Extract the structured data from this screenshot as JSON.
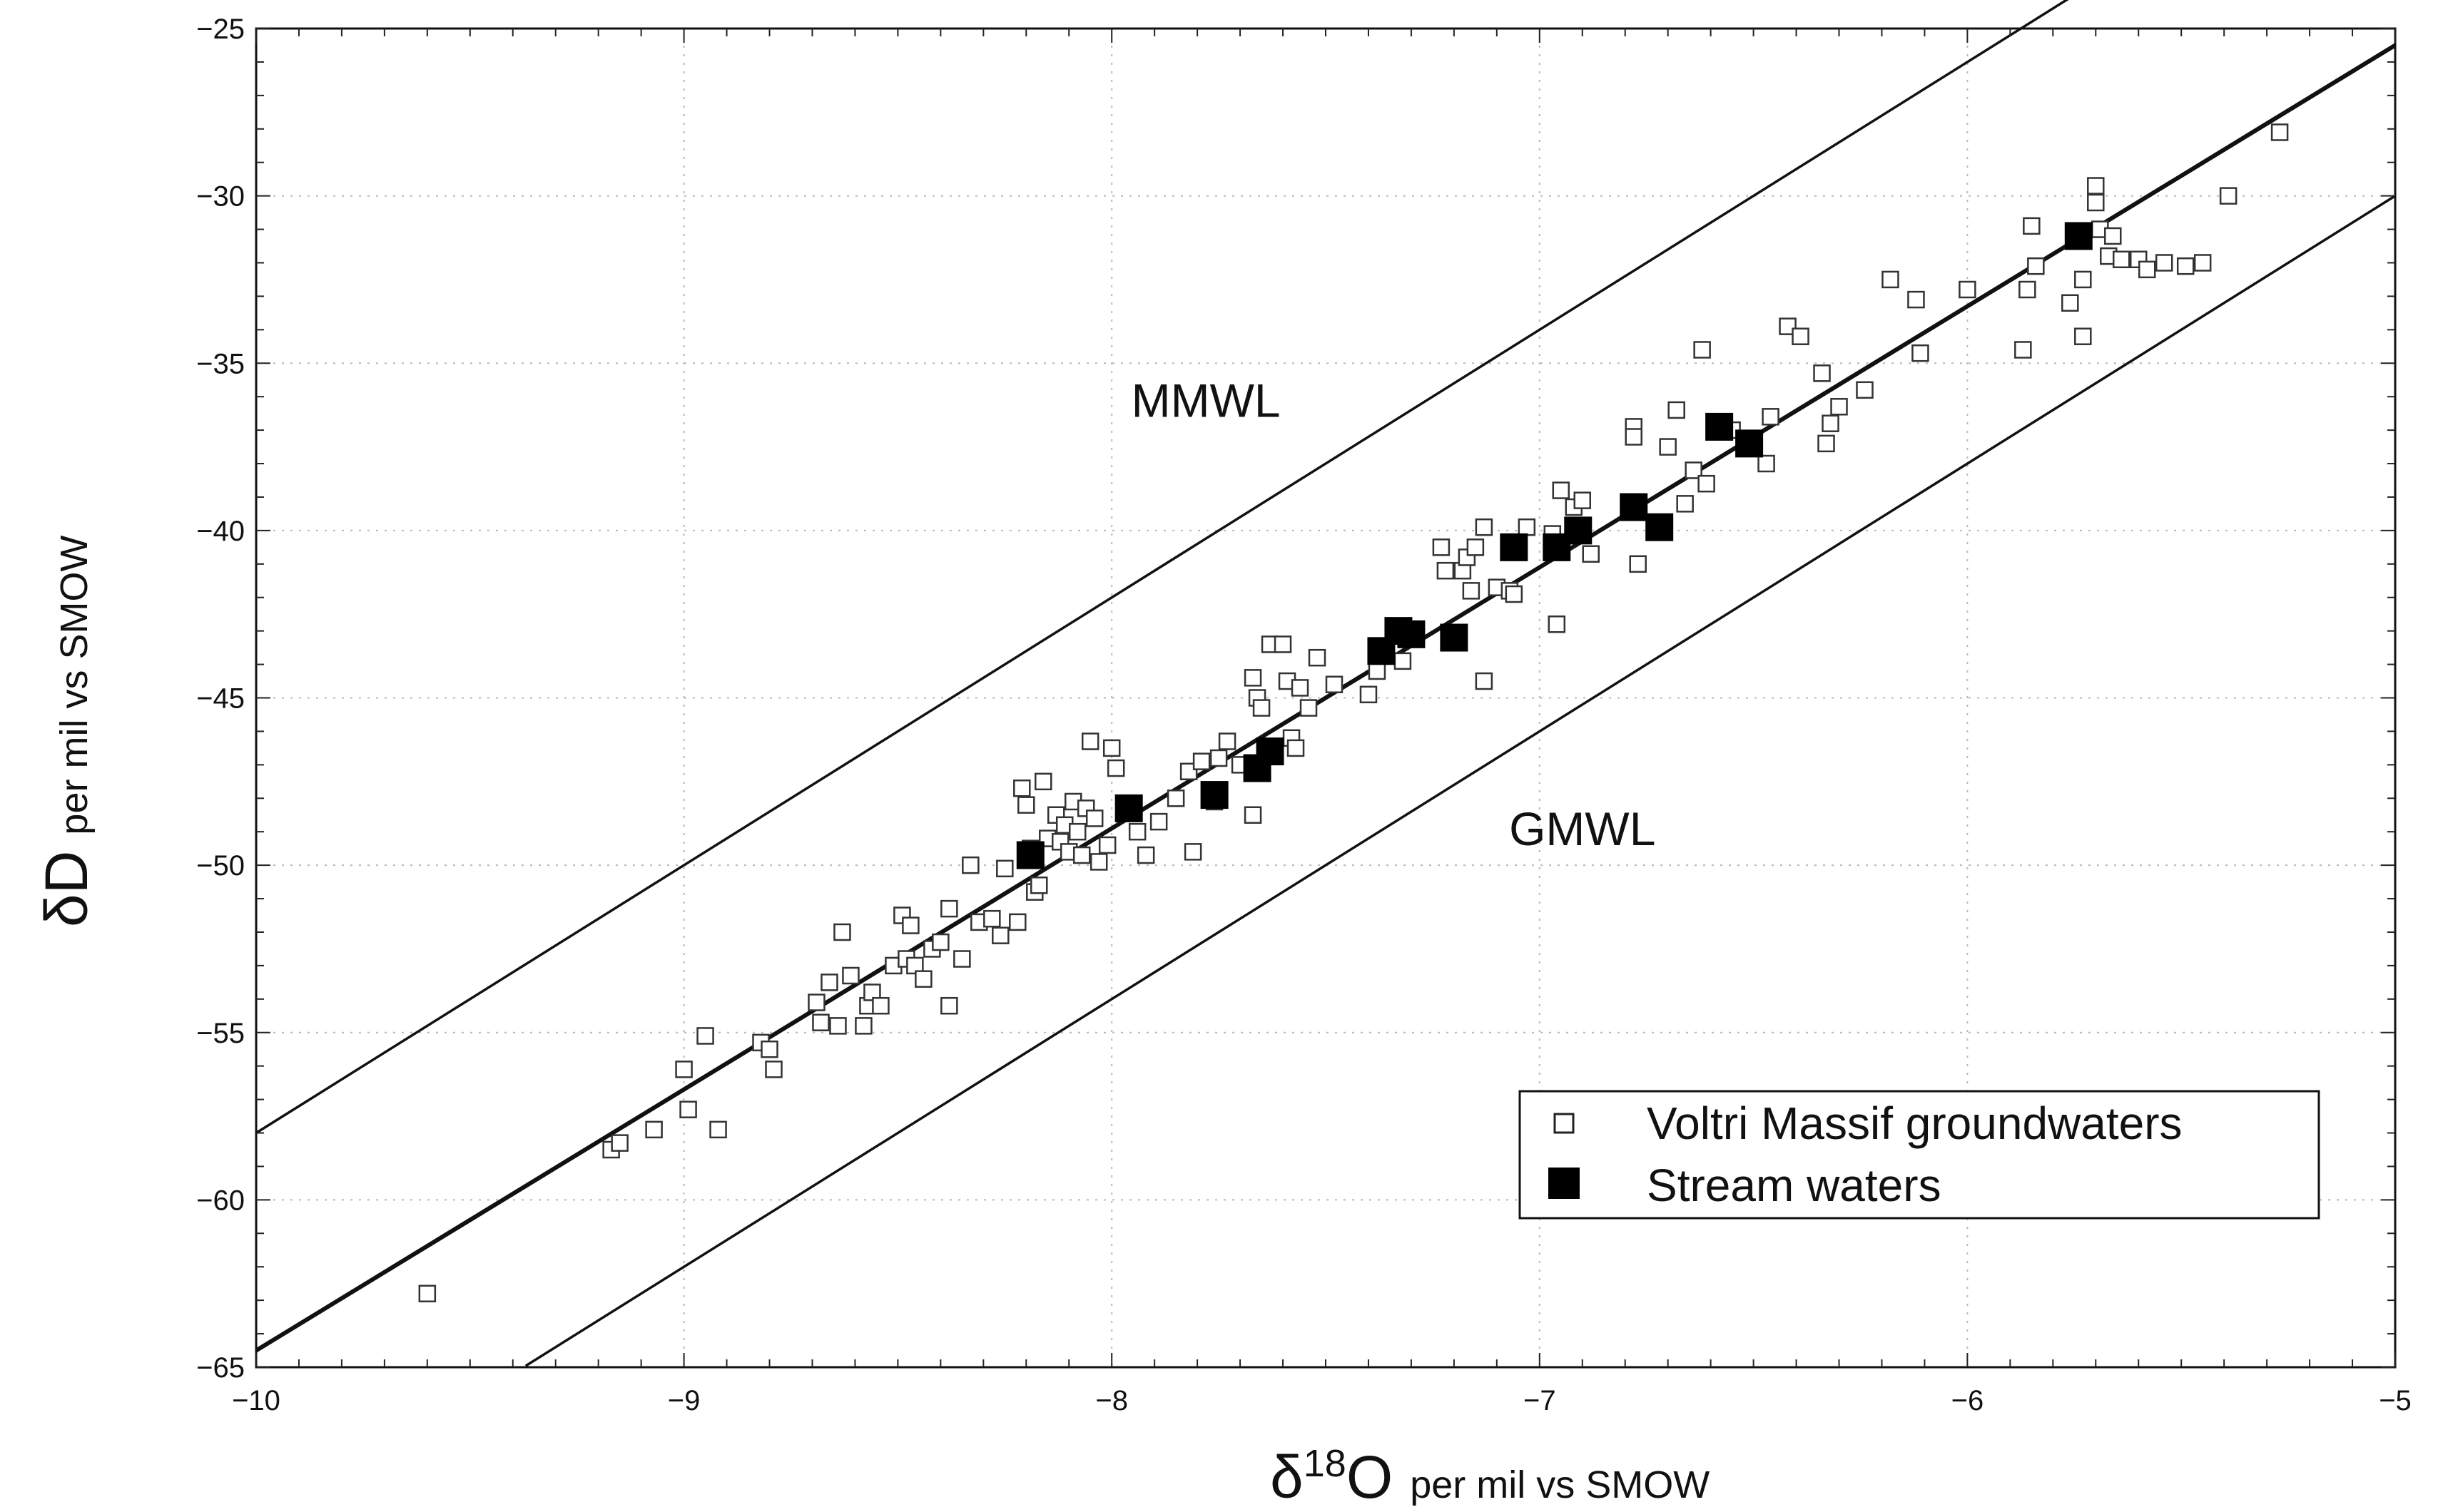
{
  "chart_data": {
    "type": "scatter",
    "title": "",
    "xlabel": {
      "symbol": "δ",
      "superscript": "18",
      "main": "O",
      "unit": "per mil vs SMOW"
    },
    "ylabel": {
      "main": "δD",
      "unit": "per mil vs SMOW"
    },
    "xlim": [
      -10,
      -5
    ],
    "ylim": [
      -65,
      -25
    ],
    "x_ticks": [
      -10,
      -9,
      -8,
      -7,
      -6,
      -5
    ],
    "x_tick_labels": [
      "−10",
      "−9",
      "−8",
      "−7",
      "−6",
      "−5"
    ],
    "y_ticks": [
      -65,
      -60,
      -55,
      -50,
      -45,
      -40,
      -35,
      -30,
      -25
    ],
    "y_tick_labels": [
      "−65",
      "−60",
      "−55",
      "−50",
      "−45",
      "−40",
      "−35",
      "−30",
      "−25"
    ],
    "grid": true,
    "lines": [
      {
        "name": "MMWL",
        "slope": 8,
        "intercept": 22,
        "x_range": [
          -10,
          -5.05
        ]
      },
      {
        "name": "GMWL",
        "slope": 8,
        "intercept": 10,
        "x_range": [
          -9.37,
          -5
        ]
      },
      {
        "name": "regression",
        "slope": 7.8,
        "intercept": 13.5,
        "x_range": [
          -10,
          -5
        ]
      }
    ],
    "annotations": [
      {
        "text": "MMWL",
        "x": -7.78,
        "y": -36.6
      },
      {
        "text": "GMWL",
        "x": -6.9,
        "y": -49.4
      }
    ],
    "legend": {
      "position": "bottom-right",
      "entries": [
        {
          "label": "Voltri Massif groundwaters",
          "marker": "open-square"
        },
        {
          "label": "Stream waters",
          "marker": "filled-square"
        }
      ]
    },
    "series": [
      {
        "name": "Voltri Massif groundwaters",
        "marker": "open-square",
        "points": [
          [
            -9.6,
            -62.8
          ],
          [
            -9.17,
            -58.5
          ],
          [
            -9.15,
            -58.3
          ],
          [
            -9.07,
            -57.9
          ],
          [
            -9.0,
            -56.1
          ],
          [
            -8.99,
            -57.3
          ],
          [
            -8.95,
            -55.1
          ],
          [
            -8.92,
            -57.9
          ],
          [
            -8.82,
            -55.3
          ],
          [
            -8.8,
            -55.5
          ],
          [
            -8.79,
            -56.1
          ],
          [
            -8.69,
            -54.1
          ],
          [
            -8.68,
            -54.7
          ],
          [
            -8.66,
            -53.5
          ],
          [
            -8.64,
            -54.8
          ],
          [
            -8.63,
            -52.0
          ],
          [
            -8.61,
            -53.3
          ],
          [
            -8.58,
            -54.8
          ],
          [
            -8.57,
            -54.2
          ],
          [
            -8.56,
            -53.8
          ],
          [
            -8.54,
            -54.2
          ],
          [
            -8.51,
            -53.0
          ],
          [
            -8.49,
            -51.5
          ],
          [
            -8.48,
            -52.8
          ],
          [
            -8.47,
            -51.8
          ],
          [
            -8.46,
            -53.0
          ],
          [
            -8.44,
            -53.4
          ],
          [
            -8.42,
            -52.5
          ],
          [
            -8.4,
            -52.3
          ],
          [
            -8.38,
            -51.3
          ],
          [
            -8.38,
            -54.2
          ],
          [
            -8.35,
            -52.8
          ],
          [
            -8.33,
            -50.0
          ],
          [
            -8.31,
            -51.7
          ],
          [
            -8.28,
            -51.6
          ],
          [
            -8.26,
            -52.1
          ],
          [
            -8.25,
            -50.1
          ],
          [
            -8.22,
            -51.7
          ],
          [
            -8.21,
            -47.7
          ],
          [
            -8.2,
            -48.2
          ],
          [
            -8.19,
            -49.5
          ],
          [
            -8.18,
            -50.8
          ],
          [
            -8.17,
            -50.6
          ],
          [
            -8.16,
            -47.5
          ],
          [
            -8.15,
            -49.2
          ],
          [
            -8.13,
            -48.5
          ],
          [
            -8.12,
            -49.3
          ],
          [
            -8.11,
            -48.8
          ],
          [
            -8.1,
            -49.6
          ],
          [
            -8.09,
            -48.1
          ],
          [
            -8.08,
            -49.0
          ],
          [
            -8.07,
            -49.7
          ],
          [
            -8.06,
            -48.3
          ],
          [
            -8.05,
            -46.3
          ],
          [
            -8.04,
            -48.6
          ],
          [
            -8.03,
            -49.9
          ],
          [
            -8.01,
            -49.4
          ],
          [
            -8.0,
            -46.5
          ],
          [
            -7.99,
            -47.1
          ],
          [
            -7.96,
            -48.2
          ],
          [
            -7.94,
            -49.0
          ],
          [
            -7.92,
            -49.7
          ],
          [
            -7.89,
            -48.7
          ],
          [
            -7.85,
            -48.0
          ],
          [
            -7.82,
            -47.2
          ],
          [
            -7.81,
            -49.6
          ],
          [
            -7.79,
            -46.9
          ],
          [
            -7.76,
            -48.1
          ],
          [
            -7.75,
            -46.8
          ],
          [
            -7.73,
            -46.3
          ],
          [
            -7.7,
            -47.0
          ],
          [
            -7.67,
            -44.4
          ],
          [
            -7.67,
            -48.5
          ],
          [
            -7.66,
            -45.0
          ],
          [
            -7.65,
            -45.3
          ],
          [
            -7.63,
            -43.4
          ],
          [
            -7.6,
            -43.4
          ],
          [
            -7.59,
            -44.5
          ],
          [
            -7.58,
            -46.2
          ],
          [
            -7.57,
            -46.5
          ],
          [
            -7.56,
            -44.7
          ],
          [
            -7.54,
            -45.3
          ],
          [
            -7.52,
            -43.8
          ],
          [
            -7.48,
            -44.6
          ],
          [
            -7.4,
            -44.9
          ],
          [
            -7.38,
            -44.2
          ],
          [
            -7.32,
            -43.9
          ],
          [
            -7.23,
            -40.5
          ],
          [
            -7.22,
            -41.2
          ],
          [
            -7.18,
            -41.2
          ],
          [
            -7.17,
            -40.8
          ],
          [
            -7.16,
            -41.8
          ],
          [
            -7.15,
            -40.5
          ],
          [
            -7.13,
            -39.9
          ],
          [
            -7.13,
            -44.5
          ],
          [
            -7.1,
            -41.7
          ],
          [
            -7.07,
            -41.8
          ],
          [
            -7.06,
            -41.9
          ],
          [
            -7.03,
            -39.9
          ],
          [
            -6.97,
            -40.1
          ],
          [
            -6.96,
            -42.8
          ],
          [
            -6.95,
            -38.8
          ],
          [
            -6.92,
            -39.3
          ],
          [
            -6.9,
            -39.1
          ],
          [
            -6.88,
            -40.7
          ],
          [
            -6.78,
            -36.9
          ],
          [
            -6.78,
            -37.2
          ],
          [
            -6.77,
            -41.0
          ],
          [
            -6.7,
            -37.5
          ],
          [
            -6.68,
            -36.4
          ],
          [
            -6.66,
            -39.2
          ],
          [
            -6.64,
            -38.2
          ],
          [
            -6.62,
            -34.6
          ],
          [
            -6.61,
            -38.6
          ],
          [
            -6.55,
            -37.0
          ],
          [
            -6.5,
            -37.5
          ],
          [
            -6.47,
            -38.0
          ],
          [
            -6.46,
            -36.6
          ],
          [
            -6.42,
            -33.9
          ],
          [
            -6.39,
            -34.2
          ],
          [
            -6.34,
            -35.3
          ],
          [
            -6.33,
            -37.4
          ],
          [
            -6.32,
            -36.8
          ],
          [
            -6.3,
            -36.3
          ],
          [
            -6.24,
            -35.8
          ],
          [
            -6.18,
            -32.5
          ],
          [
            -6.12,
            -33.1
          ],
          [
            -6.11,
            -34.7
          ],
          [
            -6.0,
            -32.8
          ],
          [
            -5.87,
            -34.6
          ],
          [
            -5.86,
            -32.8
          ],
          [
            -5.85,
            -30.9
          ],
          [
            -5.84,
            -32.1
          ],
          [
            -5.76,
            -33.2
          ],
          [
            -5.73,
            -34.2
          ],
          [
            -5.73,
            -32.5
          ],
          [
            -5.7,
            -29.7
          ],
          [
            -5.7,
            -30.2
          ],
          [
            -5.69,
            -31.0
          ],
          [
            -5.67,
            -31.8
          ],
          [
            -5.66,
            -31.2
          ],
          [
            -5.64,
            -31.9
          ],
          [
            -5.6,
            -31.9
          ],
          [
            -5.58,
            -32.2
          ],
          [
            -5.54,
            -32.0
          ],
          [
            -5.49,
            -32.1
          ],
          [
            -5.45,
            -32.0
          ],
          [
            -5.39,
            -30.0
          ],
          [
            -5.27,
            -28.1
          ]
        ]
      },
      {
        "name": "Stream waters",
        "marker": "filled-square",
        "points": [
          [
            -8.19,
            -49.7
          ],
          [
            -7.96,
            -48.3
          ],
          [
            -7.76,
            -47.9
          ],
          [
            -7.66,
            -47.1
          ],
          [
            -7.63,
            -46.6
          ],
          [
            -7.37,
            -43.6
          ],
          [
            -7.33,
            -43.0
          ],
          [
            -7.3,
            -43.1
          ],
          [
            -7.2,
            -43.2
          ],
          [
            -7.06,
            -40.5
          ],
          [
            -6.96,
            -40.5
          ],
          [
            -6.91,
            -40.0
          ],
          [
            -6.78,
            -39.3
          ],
          [
            -6.72,
            -39.9
          ],
          [
            -6.58,
            -36.9
          ],
          [
            -6.51,
            -37.4
          ],
          [
            -5.74,
            -31.2
          ]
        ]
      }
    ]
  }
}
